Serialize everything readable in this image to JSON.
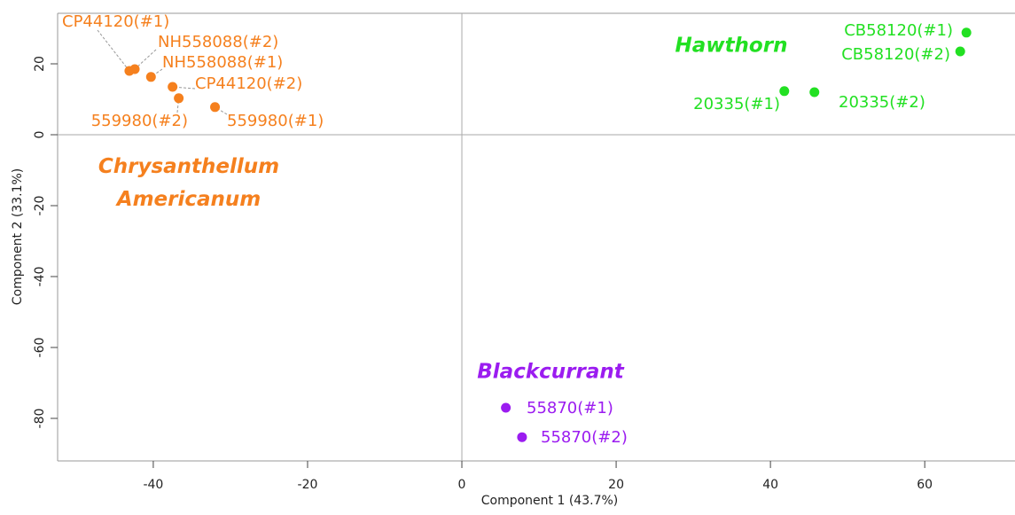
{
  "chart_data": {
    "type": "scatter",
    "x_label": "Component 1 (43.7%)",
    "y_label": "Component 2 (33.1%)",
    "xlim": [
      -52.4,
      71.7
    ],
    "ylim": [
      -92,
      34.25
    ],
    "xticks": [
      -40,
      -20,
      0,
      20,
      40,
      60
    ],
    "yticks": [
      -80,
      -60,
      -40,
      -20,
      0,
      20
    ],
    "series": [
      {
        "name": "Chrysanthellum Americanum",
        "color": "#f5801e",
        "x": [
          -43.1,
          -42.4,
          -40.3,
          -37.5,
          -36.7,
          -32
        ],
        "values": [
          18,
          18.5,
          16.3,
          13.5,
          10.3,
          7.8
        ],
        "point_labels": [
          "CP44120(#1)",
          "NH558088(#2)",
          "NH558088(#1)",
          "CP44120(#2)",
          "559980(#2)",
          "559980(#1)"
        ]
      },
      {
        "name": "Hawthorn",
        "color": "#22e022",
        "x": [
          65.4,
          64.6,
          41.8,
          45.7
        ],
        "values": [
          28.8,
          23.5,
          12.3,
          12
        ],
        "point_labels": [
          "CB58120(#1)",
          "CB58120(#2)",
          "20335(#1)",
          "20335(#2)"
        ]
      },
      {
        "name": "Blackcurrant",
        "color": "#9b1cf0",
        "x": [
          5.7,
          7.8
        ],
        "values": [
          -77,
          -85.3
        ],
        "point_labels": [
          "55870(#1)",
          "55870(#2)"
        ]
      }
    ]
  }
}
